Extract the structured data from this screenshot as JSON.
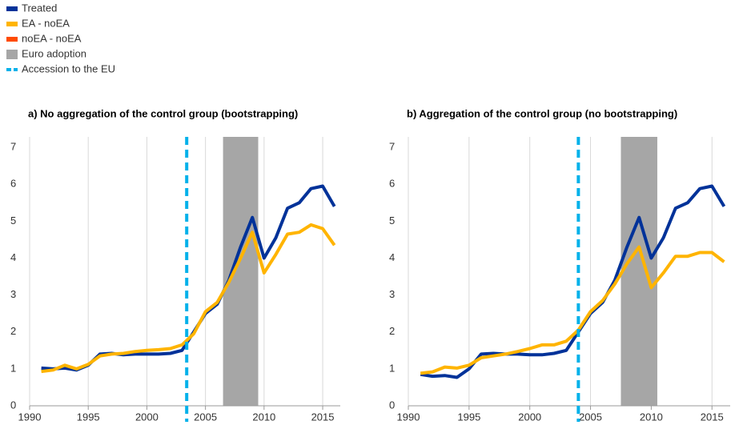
{
  "chart_data": [
    {
      "type": "line",
      "title": "a) No aggregation of the control group (bootstrapping)",
      "x": [
        1991,
        1992,
        1993,
        1994,
        1995,
        1996,
        1997,
        1998,
        1999,
        2000,
        2001,
        2002,
        2003,
        2004,
        2005,
        2006,
        2007,
        2008,
        2009,
        2010,
        2011,
        2012,
        2013,
        2014,
        2015,
        2016
      ],
      "series": [
        {
          "name": "Treated",
          "color": "#003299",
          "values": [
            1.02,
            1.0,
            1.02,
            0.97,
            1.1,
            1.4,
            1.42,
            1.38,
            1.4,
            1.4,
            1.4,
            1.42,
            1.5,
            2.0,
            2.5,
            2.75,
            3.4,
            4.3,
            5.1,
            4.0,
            4.55,
            5.35,
            5.5,
            5.88,
            5.95,
            5.4
          ]
        },
        {
          "name": "EA - noEA",
          "color": "#ffb400",
          "values": [
            0.93,
            0.97,
            1.1,
            1.0,
            1.12,
            1.35,
            1.4,
            1.42,
            1.47,
            1.5,
            1.52,
            1.55,
            1.65,
            1.95,
            2.55,
            2.8,
            3.35,
            4.0,
            4.7,
            3.6,
            4.1,
            4.65,
            4.7,
            4.9,
            4.8,
            4.35
          ]
        },
        {
          "name": "noEA - noEA",
          "color": "#ff4b00",
          "values": [
            null,
            null,
            null,
            null,
            null,
            null,
            null,
            null,
            null,
            null,
            null,
            null,
            null,
            null,
            null,
            null,
            null,
            null,
            null,
            null,
            null,
            null,
            null,
            null,
            null,
            null
          ]
        }
      ],
      "shade": {
        "name": "Euro adoption",
        "color": "#a6a6a6",
        "x": [
          2006.5,
          2009.5
        ]
      },
      "vline": {
        "name": "Accession to the EU",
        "color": "#00b1ea",
        "x": 2003.4
      },
      "xlim": [
        1990,
        2016.5
      ],
      "xticks": [
        1990,
        1995,
        2000,
        2005,
        2010,
        2015
      ],
      "ylim": [
        0,
        7.5
      ],
      "yticks": [
        0,
        1,
        2,
        3,
        4,
        5,
        6,
        7
      ],
      "grid": true
    },
    {
      "type": "line",
      "title": "b) Aggregation of the control group (no bootstrapping)",
      "x": [
        1991,
        1992,
        1993,
        1994,
        1995,
        1996,
        1997,
        1998,
        1999,
        2000,
        2001,
        2002,
        2003,
        2004,
        2005,
        2006,
        2007,
        2008,
        2009,
        2010,
        2011,
        2012,
        2013,
        2014,
        2015,
        2016
      ],
      "series": [
        {
          "color": "#003299",
          "values": [
            0.85,
            0.8,
            0.82,
            0.77,
            1.0,
            1.4,
            1.42,
            1.4,
            1.4,
            1.38,
            1.38,
            1.42,
            1.5,
            2.0,
            2.5,
            2.8,
            3.4,
            4.3,
            5.1,
            4.0,
            4.55,
            5.35,
            5.5,
            5.88,
            5.95,
            5.4
          ]
        },
        {
          "color": "#ffb400",
          "values": [
            0.88,
            0.92,
            1.05,
            1.02,
            1.1,
            1.3,
            1.35,
            1.4,
            1.47,
            1.55,
            1.65,
            1.65,
            1.75,
            2.05,
            2.55,
            2.85,
            3.3,
            3.85,
            4.3,
            3.2,
            3.6,
            4.05,
            4.05,
            4.15,
            4.15,
            3.9
          ]
        }
      ],
      "shade": {
        "color": "#a6a6a6",
        "x": [
          2007.5,
          2010.5
        ]
      },
      "vline": {
        "color": "#00b1ea",
        "x": 2004
      },
      "xlim": [
        1990,
        2016.5
      ],
      "xticks": [
        1990,
        1995,
        2000,
        2005,
        2010,
        2015
      ],
      "ylim": [
        0,
        7.5
      ],
      "yticks": [
        0,
        1,
        2,
        3,
        4,
        5,
        6,
        7
      ],
      "grid": true
    }
  ]
}
